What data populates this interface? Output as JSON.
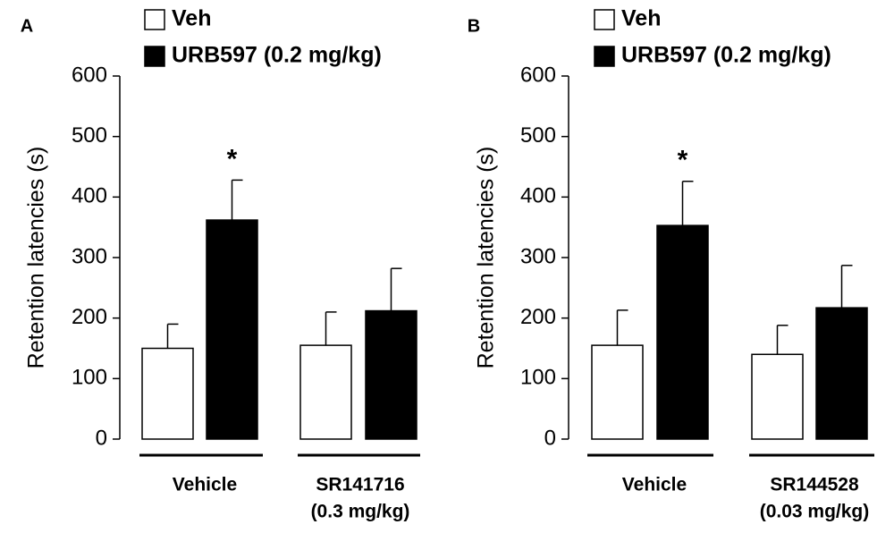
{
  "legend": {
    "veh_label": "Veh",
    "urb_label": "URB597 (0.2 mg/kg)"
  },
  "colors": {
    "veh": "#ffffff",
    "urb": "#000000",
    "axis": "#000000"
  },
  "chart_data": [
    {
      "panel": "A",
      "type": "bar",
      "ylabel": "Retention latencies (s)",
      "ylim": [
        0,
        600
      ],
      "yticks": [
        "0",
        "100",
        "200",
        "300",
        "400",
        "500",
        "600"
      ],
      "groups": [
        {
          "label_lines": [
            "Vehicle"
          ]
        },
        {
          "label_lines": [
            "SR141716",
            "(0.3 mg/kg)"
          ]
        }
      ],
      "series": [
        {
          "name": "Veh",
          "values": [
            150,
            155
          ],
          "errors": [
            40,
            55
          ]
        },
        {
          "name": "URB597 (0.2 mg/kg)",
          "values": [
            362,
            212
          ],
          "errors": [
            66,
            70
          ]
        }
      ],
      "annotations": [
        {
          "text": "*",
          "group": 0,
          "series": 1
        }
      ]
    },
    {
      "panel": "B",
      "type": "bar",
      "ylabel": "Retention latencies (s)",
      "ylim": [
        0,
        600
      ],
      "yticks": [
        "0",
        "100",
        "200",
        "300",
        "400",
        "500",
        "600"
      ],
      "groups": [
        {
          "label_lines": [
            "Vehicle"
          ]
        },
        {
          "label_lines": [
            "SR144528",
            "(0.03 mg/kg)"
          ]
        }
      ],
      "series": [
        {
          "name": "Veh",
          "values": [
            155,
            140
          ],
          "errors": [
            58,
            48
          ]
        },
        {
          "name": "URB597 (0.2 mg/kg)",
          "values": [
            353,
            217
          ],
          "errors": [
            73,
            70
          ]
        }
      ],
      "annotations": [
        {
          "text": "*",
          "group": 0,
          "series": 1
        }
      ]
    }
  ]
}
